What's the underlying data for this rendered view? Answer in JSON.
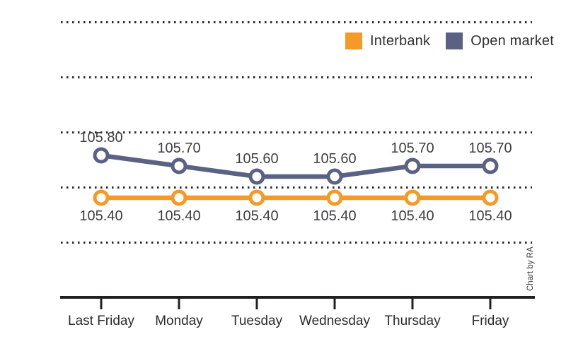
{
  "chart_data": {
    "type": "line",
    "categories": [
      "Last Friday",
      "Monday",
      "Tuesday",
      "Wednesday",
      "Thursday",
      "Friday"
    ],
    "series": [
      {
        "name": "Open market",
        "color": "#5A6284",
        "values": [
          105.8,
          105.7,
          105.6,
          105.6,
          105.7,
          105.7
        ],
        "labels": [
          "105.80",
          "105.70",
          "105.60",
          "105.60",
          "105.70",
          "105.70"
        ],
        "label_position": "above"
      },
      {
        "name": "Interbank",
        "color": "#F59A28",
        "values": [
          105.4,
          105.4,
          105.4,
          105.4,
          105.4,
          105.4
        ],
        "labels": [
          "105.40",
          "105.40",
          "105.40",
          "105.40",
          "105.40",
          "105.40"
        ],
        "label_position": "below"
      }
    ],
    "legend": [
      "Interbank",
      "Open market"
    ],
    "legend_position": "top-right",
    "grid": "horizontal-dotted",
    "gridline_count": 5,
    "xlabel": "",
    "ylabel": "",
    "title": "",
    "attribution": "Chart by RA",
    "marker": "open-circle"
  }
}
